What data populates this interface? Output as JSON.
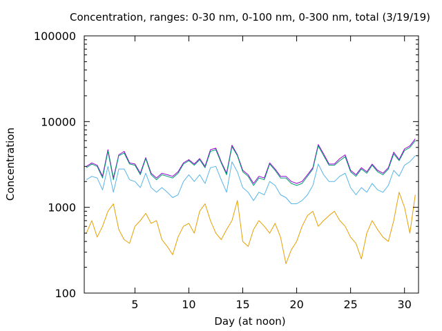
{
  "chart_data": {
    "type": "line",
    "title": "Concentration, ranges: 0-30 nm, 0-100 nm, 0-300 nm, total (3/19/19)",
    "xlabel": "Day (at noon)",
    "ylabel": "Concentration",
    "xlim": [
      0.3,
      31.3
    ],
    "ylim": [
      100,
      100000
    ],
    "yscale": "log",
    "grid": false,
    "legend": "none",
    "x_ticks": [
      5,
      10,
      15,
      20,
      25,
      30
    ],
    "x_tick_labels": [
      "5",
      "10",
      "15",
      "20",
      "25",
      "30"
    ],
    "y_ticks": [
      100,
      1000,
      10000,
      100000
    ],
    "y_tick_labels": [
      "100",
      "1000",
      "10000",
      "100000"
    ],
    "series": [
      {
        "color": "#9400d3",
        "x": [
          0.5,
          1,
          1.5,
          2,
          2.5,
          3,
          3.5,
          4,
          4.5,
          5,
          5.5,
          6,
          6.5,
          7,
          7.5,
          8,
          8.5,
          9,
          9.5,
          10,
          10.5,
          11,
          11.5,
          12,
          12.5,
          13,
          13.5,
          14,
          14.5,
          15,
          15.5,
          16,
          16.5,
          17,
          17.5,
          18,
          18.5,
          19,
          19.5,
          20,
          20.5,
          21,
          21.5,
          22,
          22.5,
          23,
          23.5,
          24,
          24.5,
          25,
          25.5,
          26,
          26.5,
          27,
          27.5,
          28,
          28.5,
          29,
          29.5,
          30,
          30.5,
          31
        ],
        "values": [
          3000,
          3300,
          3100,
          2300,
          4700,
          2200,
          4100,
          4500,
          3300,
          3200,
          2500,
          3800,
          2500,
          2200,
          2500,
          2400,
          2300,
          2600,
          3300,
          3600,
          3200,
          3700,
          3000,
          4700,
          4900,
          3400,
          2500,
          5300,
          4100,
          2700,
          2400,
          1900,
          2300,
          2200,
          3300,
          2800,
          2300,
          2300,
          2000,
          1900,
          2000,
          2400,
          2900,
          5400,
          4200,
          3200,
          3200,
          3700,
          4100,
          2700,
          2400,
          2900,
          2600,
          3200,
          2700,
          2500,
          2900,
          4400,
          3600,
          4800,
          5200,
          6300
        ]
      },
      {
        "color": "#009e73",
        "x": [
          0.5,
          1,
          1.5,
          2,
          2.5,
          3,
          3.5,
          4,
          4.5,
          5,
          5.5,
          6,
          6.5,
          7,
          7.5,
          8,
          8.5,
          9,
          9.5,
          10,
          10.5,
          11,
          11.5,
          12,
          12.5,
          13,
          13.5,
          14,
          14.5,
          15,
          15.5,
          16,
          16.5,
          17,
          17.5,
          18,
          18.5,
          19,
          19.5,
          20,
          20.5,
          21,
          21.5,
          22,
          22.5,
          23,
          23.5,
          24,
          24.5,
          25,
          25.5,
          26,
          26.5,
          27,
          27.5,
          28,
          28.5,
          29,
          29.5,
          30,
          30.5,
          31
        ],
        "values": [
          2900,
          3200,
          3000,
          2200,
          4500,
          2100,
          4000,
          4300,
          3200,
          3100,
          2400,
          3700,
          2400,
          2100,
          2400,
          2300,
          2200,
          2500,
          3200,
          3500,
          3100,
          3600,
          2900,
          4500,
          4700,
          3300,
          2400,
          5100,
          4000,
          2600,
          2300,
          1800,
          2200,
          2100,
          3200,
          2700,
          2200,
          2200,
          1900,
          1800,
          1900,
          2300,
          2800,
          5200,
          4000,
          3100,
          3100,
          3500,
          3900,
          2600,
          2300,
          2800,
          2500,
          3100,
          2600,
          2400,
          2800,
          4200,
          3500,
          4600,
          5000,
          6000
        ]
      },
      {
        "color": "#56b4e9",
        "x": [
          0.5,
          1,
          1.5,
          2,
          2.5,
          3,
          3.5,
          4,
          4.5,
          5,
          5.5,
          6,
          6.5,
          7,
          7.5,
          8,
          8.5,
          9,
          9.5,
          10,
          10.5,
          11,
          11.5,
          12,
          12.5,
          13,
          13.5,
          14,
          14.5,
          15,
          15.5,
          16,
          16.5,
          17,
          17.5,
          18,
          18.5,
          19,
          19.5,
          20,
          20.5,
          21,
          21.5,
          22,
          22.5,
          23,
          23.5,
          24,
          24.5,
          25,
          25.5,
          26,
          26.5,
          27,
          27.5,
          28,
          28.5,
          29,
          29.5,
          30,
          30.5,
          31
        ],
        "values": [
          2100,
          2300,
          2200,
          1600,
          3000,
          1500,
          2800,
          2800,
          2100,
          2000,
          1700,
          2500,
          1700,
          1500,
          1700,
          1500,
          1300,
          1400,
          2000,
          2400,
          2000,
          2400,
          1900,
          2900,
          3000,
          2100,
          1500,
          3400,
          2600,
          1700,
          1500,
          1200,
          1500,
          1400,
          2000,
          1800,
          1400,
          1300,
          1100,
          1100,
          1200,
          1400,
          1800,
          3200,
          2400,
          2000,
          2000,
          2300,
          2500,
          1700,
          1400,
          1700,
          1500,
          1900,
          1600,
          1500,
          1800,
          2700,
          2300,
          3100,
          3400,
          4000
        ]
      },
      {
        "color": "#e69f00",
        "x": [
          0.5,
          1,
          1.5,
          2,
          2.5,
          3,
          3.5,
          4,
          4.5,
          5,
          5.5,
          6,
          6.5,
          7,
          7.5,
          8,
          8.5,
          9,
          9.5,
          10,
          10.5,
          11,
          11.5,
          12,
          12.5,
          13,
          13.5,
          14,
          14.5,
          15,
          15.5,
          16,
          16.5,
          17,
          17.5,
          18,
          18.5,
          19,
          19.5,
          20,
          20.5,
          21,
          21.5,
          22,
          22.5,
          23,
          23.5,
          24,
          24.5,
          25,
          25.5,
          26,
          26.5,
          27,
          27.5,
          28,
          28.5,
          29,
          29.5,
          30,
          30.5,
          31
        ],
        "values": [
          500,
          700,
          450,
          600,
          900,
          1100,
          550,
          420,
          380,
          600,
          700,
          850,
          650,
          700,
          420,
          350,
          280,
          450,
          600,
          650,
          500,
          900,
          1100,
          700,
          500,
          420,
          550,
          700,
          1200,
          400,
          350,
          550,
          700,
          600,
          500,
          650,
          450,
          220,
          320,
          400,
          600,
          800,
          900,
          600,
          700,
          800,
          900,
          700,
          600,
          450,
          380,
          250,
          500,
          700,
          550,
          450,
          400,
          700,
          1500,
          1000,
          500,
          1400
        ]
      }
    ],
    "annotations": []
  }
}
